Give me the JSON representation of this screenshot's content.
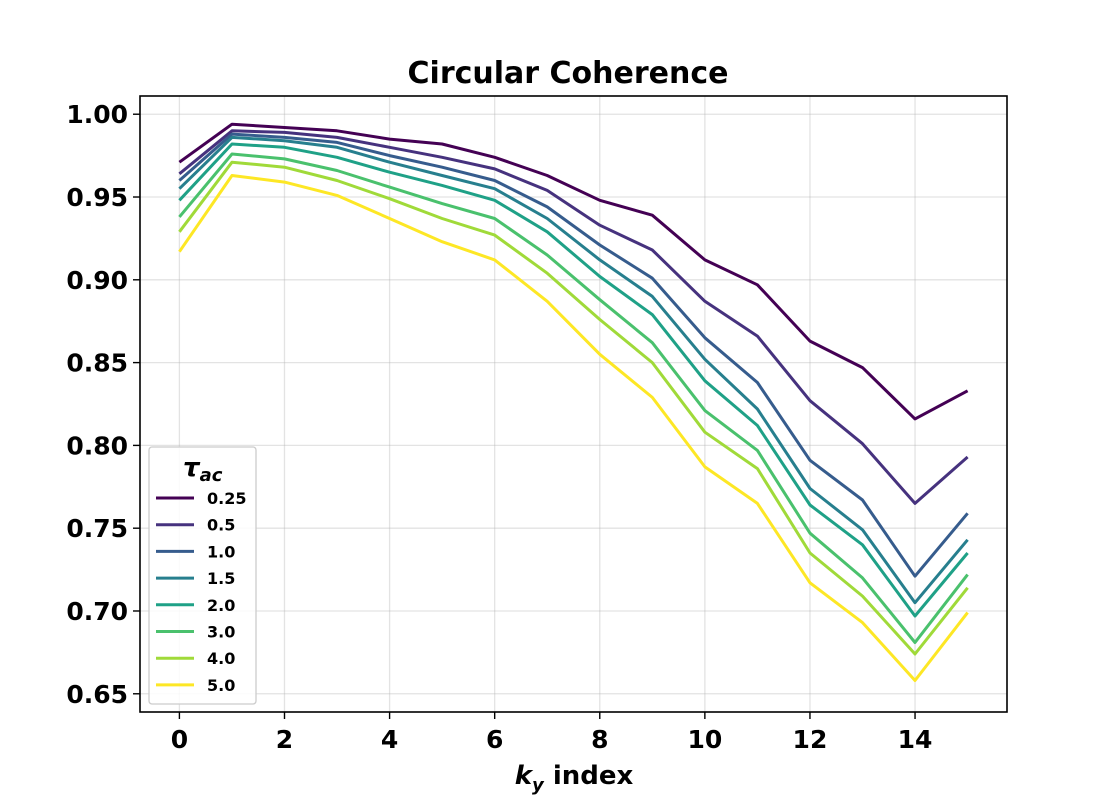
{
  "chart_data": {
    "type": "line",
    "title": "Circular Coherence",
    "xlabel_prefix": "k",
    "xlabel_subscript": "y",
    "xlabel_suffix": " index",
    "ylabel": "",
    "xlim": [
      -0.75,
      15.75
    ],
    "ylim": [
      0.639,
      1.011
    ],
    "xticks": [
      0,
      2,
      4,
      6,
      8,
      10,
      12,
      14
    ],
    "xtick_labels": [
      "0",
      "2",
      "4",
      "6",
      "8",
      "10",
      "12",
      "14"
    ],
    "yticks": [
      0.65,
      0.7,
      0.75,
      0.8,
      0.85,
      0.9,
      0.95,
      1.0
    ],
    "ytick_labels": [
      "0.65",
      "0.70",
      "0.75",
      "0.80",
      "0.85",
      "0.90",
      "0.95",
      "1.00"
    ],
    "grid": true,
    "legend": {
      "title_symbol": "τ",
      "title_subscript": "ac",
      "placement": "lower-left"
    },
    "x": [
      0,
      1,
      2,
      3,
      4,
      5,
      6,
      7,
      8,
      9,
      10,
      11,
      12,
      13,
      14,
      15
    ],
    "series": [
      {
        "name": "0.25",
        "color": "#440154",
        "values": [
          0.971,
          0.994,
          0.992,
          0.99,
          0.985,
          0.982,
          0.974,
          0.963,
          0.948,
          0.939,
          0.912,
          0.897,
          0.863,
          0.847,
          0.816,
          0.833
        ]
      },
      {
        "name": "0.5",
        "color": "#46327e",
        "values": [
          0.964,
          0.99,
          0.989,
          0.986,
          0.98,
          0.974,
          0.967,
          0.954,
          0.933,
          0.918,
          0.887,
          0.866,
          0.827,
          0.801,
          0.765,
          0.793
        ]
      },
      {
        "name": "1.0",
        "color": "#365c8d",
        "values": [
          0.96,
          0.988,
          0.986,
          0.983,
          0.975,
          0.968,
          0.96,
          0.944,
          0.921,
          0.901,
          0.865,
          0.838,
          0.791,
          0.767,
          0.721,
          0.759
        ]
      },
      {
        "name": "1.5",
        "color": "#277f8e",
        "values": [
          0.955,
          0.986,
          0.984,
          0.98,
          0.971,
          0.963,
          0.955,
          0.937,
          0.912,
          0.89,
          0.852,
          0.822,
          0.774,
          0.749,
          0.705,
          0.743
        ]
      },
      {
        "name": "2.0",
        "color": "#1fa187",
        "values": [
          0.948,
          0.982,
          0.98,
          0.974,
          0.965,
          0.957,
          0.948,
          0.929,
          0.902,
          0.879,
          0.839,
          0.812,
          0.764,
          0.74,
          0.697,
          0.735
        ]
      },
      {
        "name": "3.0",
        "color": "#4ac16d",
        "values": [
          0.938,
          0.976,
          0.973,
          0.966,
          0.956,
          0.946,
          0.937,
          0.915,
          0.888,
          0.862,
          0.821,
          0.797,
          0.747,
          0.72,
          0.681,
          0.722
        ]
      },
      {
        "name": "4.0",
        "color": "#a0da39",
        "values": [
          0.929,
          0.971,
          0.968,
          0.96,
          0.949,
          0.937,
          0.927,
          0.904,
          0.876,
          0.85,
          0.808,
          0.786,
          0.735,
          0.709,
          0.674,
          0.714
        ]
      },
      {
        "name": "5.0",
        "color": "#fde725",
        "values": [
          0.917,
          0.963,
          0.959,
          0.951,
          0.937,
          0.923,
          0.912,
          0.887,
          0.855,
          0.829,
          0.787,
          0.765,
          0.717,
          0.693,
          0.658,
          0.699
        ]
      }
    ]
  }
}
